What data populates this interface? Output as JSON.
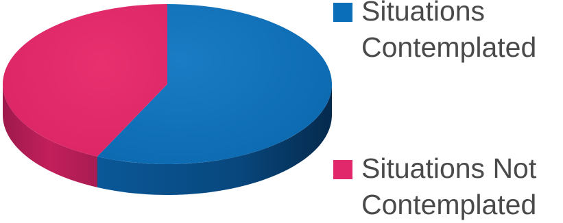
{
  "chart_data": {
    "type": "pie",
    "style": "3d",
    "slices": [
      {
        "label": "Situations\nContemplated",
        "value": 57,
        "color": "#0a6fb8"
      },
      {
        "label": "Situations Not\nContemplated",
        "value": 43,
        "color": "#e0286a"
      }
    ],
    "legend": {
      "placement": "right",
      "entries": [
        "Situations\nContemplated",
        "Situations Not\nContemplated"
      ]
    }
  }
}
